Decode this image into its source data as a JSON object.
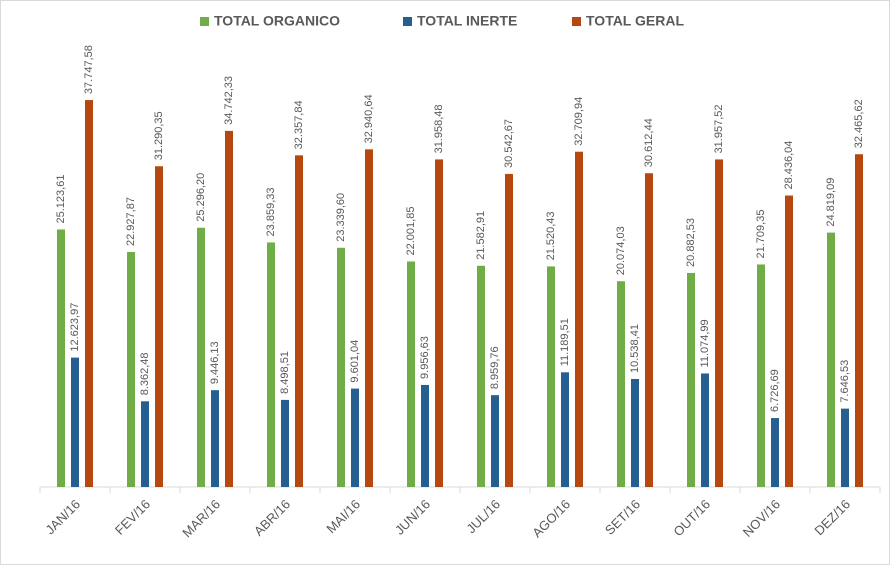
{
  "chart_data": {
    "type": "bar",
    "categories": [
      "JAN/16",
      "FEV/16",
      "MAR/16",
      "ABR/16",
      "MAI/16",
      "JUN/16",
      "JUL/16",
      "AGO/16",
      "SET/16",
      "OUT/16",
      "NOV/16",
      "DEZ/16"
    ],
    "series": [
      {
        "name": "TOTAL ORGANICO",
        "color": "#70ad47",
        "values": [
          25123.61,
          22927.87,
          25296.2,
          23859.33,
          23339.6,
          22001.85,
          21582.91,
          21520.43,
          20074.03,
          20882.53,
          21709.35,
          24819.09
        ],
        "value_labels": [
          "25.123,61",
          "22.927,87",
          "25.296,20",
          "23.859,33",
          "23.339,60",
          "22.001,85",
          "21.582,91",
          "21.520,43",
          "20.074,03",
          "20.882,53",
          "21.709,35",
          "24.819,09"
        ]
      },
      {
        "name": "TOTAL INERTE",
        "color": "#255e91",
        "values": [
          12623.97,
          8362.48,
          9446.13,
          8498.51,
          9601.04,
          9956.63,
          8959.76,
          11189.51,
          10538.41,
          11074.99,
          6726.69,
          7646.53
        ],
        "value_labels": [
          "12.623,97",
          "8.362,48",
          "9.446,13",
          "8.498,51",
          "9.601,04",
          "9.956,63",
          "8.959,76",
          "11.189,51",
          "10.538,41",
          "11.074,99",
          "6.726,69",
          "7.646,53"
        ]
      },
      {
        "name": "TOTAL GERAL",
        "color": "#b5470f",
        "values": [
          37747.58,
          31290.35,
          34742.33,
          32357.84,
          32940.64,
          31958.48,
          30542.67,
          32709.94,
          30612.44,
          31957.52,
          28436.04,
          32465.62
        ],
        "value_labels": [
          "37.747,58",
          "31.290,35",
          "34.742,33",
          "32.357,84",
          "32.940,64",
          "31.958,48",
          "30.542,67",
          "32.709,94",
          "30.612,44",
          "31.957,52",
          "28.436,04",
          "32.465,62"
        ]
      }
    ],
    "ylim": [
      0,
      40000
    ],
    "legend": "top"
  }
}
